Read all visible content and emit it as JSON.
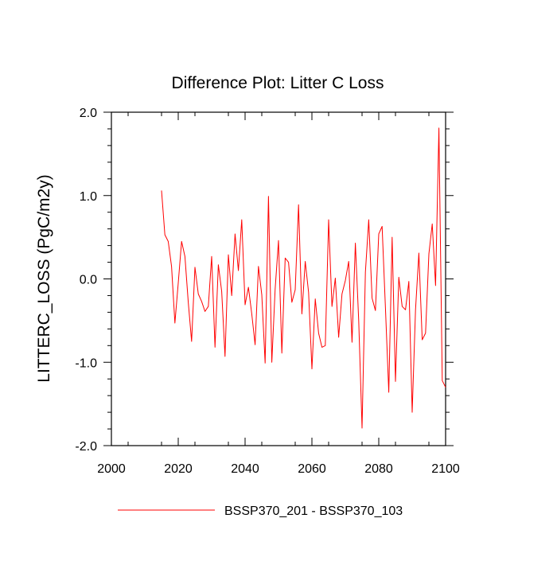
{
  "chart_data": {
    "type": "line",
    "title": "Difference Plot: Litter C Loss",
    "xlabel": "",
    "ylabel": "LITTERC_LOSS  (PgC/m2y)",
    "xlim": [
      2000,
      2100
    ],
    "ylim": [
      -2.0,
      2.0
    ],
    "xticks": [
      2000,
      2020,
      2040,
      2060,
      2080,
      2100
    ],
    "xtick_labels": [
      "2000",
      "2020",
      "2040",
      "2060",
      "2080",
      "2100"
    ],
    "yticks": [
      -2.0,
      -1.0,
      0.0,
      1.0,
      2.0
    ],
    "ytick_labels": [
      "-2.0",
      "-1.0",
      "0.0",
      "1.0",
      "2.0"
    ],
    "grid": false,
    "legend_position": "bottom",
    "series": [
      {
        "name": "BSSP370_201 - BSSP370_103",
        "color": "#ff0000",
        "x": [
          2015,
          2016,
          2017,
          2018,
          2019,
          2020,
          2021,
          2022,
          2023,
          2024,
          2025,
          2026,
          2027,
          2028,
          2029,
          2030,
          2031,
          2032,
          2033,
          2034,
          2035,
          2036,
          2037,
          2038,
          2039,
          2040,
          2041,
          2042,
          2043,
          2044,
          2045,
          2046,
          2047,
          2048,
          2049,
          2050,
          2051,
          2052,
          2053,
          2054,
          2055,
          2056,
          2057,
          2058,
          2059,
          2060,
          2061,
          2062,
          2063,
          2064,
          2065,
          2066,
          2067,
          2068,
          2069,
          2070,
          2071,
          2072,
          2073,
          2074,
          2075,
          2076,
          2077,
          2078,
          2079,
          2080,
          2081,
          2082,
          2083,
          2084,
          2085,
          2086,
          2087,
          2088,
          2089,
          2090,
          2091,
          2092,
          2093,
          2094,
          2095,
          2096,
          2097,
          2098,
          2099,
          2100
        ],
        "values": [
          1.06,
          0.53,
          0.45,
          0.15,
          -0.53,
          -0.05,
          0.45,
          0.27,
          -0.28,
          -0.75,
          0.14,
          -0.18,
          -0.27,
          -0.39,
          -0.33,
          0.27,
          -0.82,
          0.17,
          -0.15,
          -0.93,
          0.29,
          -0.2,
          0.54,
          0.1,
          0.71,
          -0.31,
          -0.1,
          -0.42,
          -0.79,
          0.15,
          -0.19,
          -1.01,
          0.99,
          -1.0,
          -0.12,
          0.46,
          -0.89,
          0.25,
          0.2,
          -0.28,
          -0.13,
          0.89,
          -0.42,
          0.21,
          -0.16,
          -1.08,
          -0.24,
          -0.65,
          -0.82,
          -0.8,
          0.71,
          -0.33,
          0.01,
          -0.7,
          -0.18,
          -0.02,
          0.21,
          -0.76,
          0.43,
          -0.5,
          -1.79,
          0.08,
          0.71,
          -0.23,
          -0.38,
          0.54,
          0.63,
          -0.35,
          -1.36,
          0.5,
          -1.23,
          0.02,
          -0.33,
          -0.37,
          -0.03,
          -1.6,
          -0.37,
          0.31,
          -0.73,
          -0.65,
          0.3,
          0.66,
          -0.08,
          1.81,
          -1.22,
          -1.3
        ]
      }
    ]
  }
}
